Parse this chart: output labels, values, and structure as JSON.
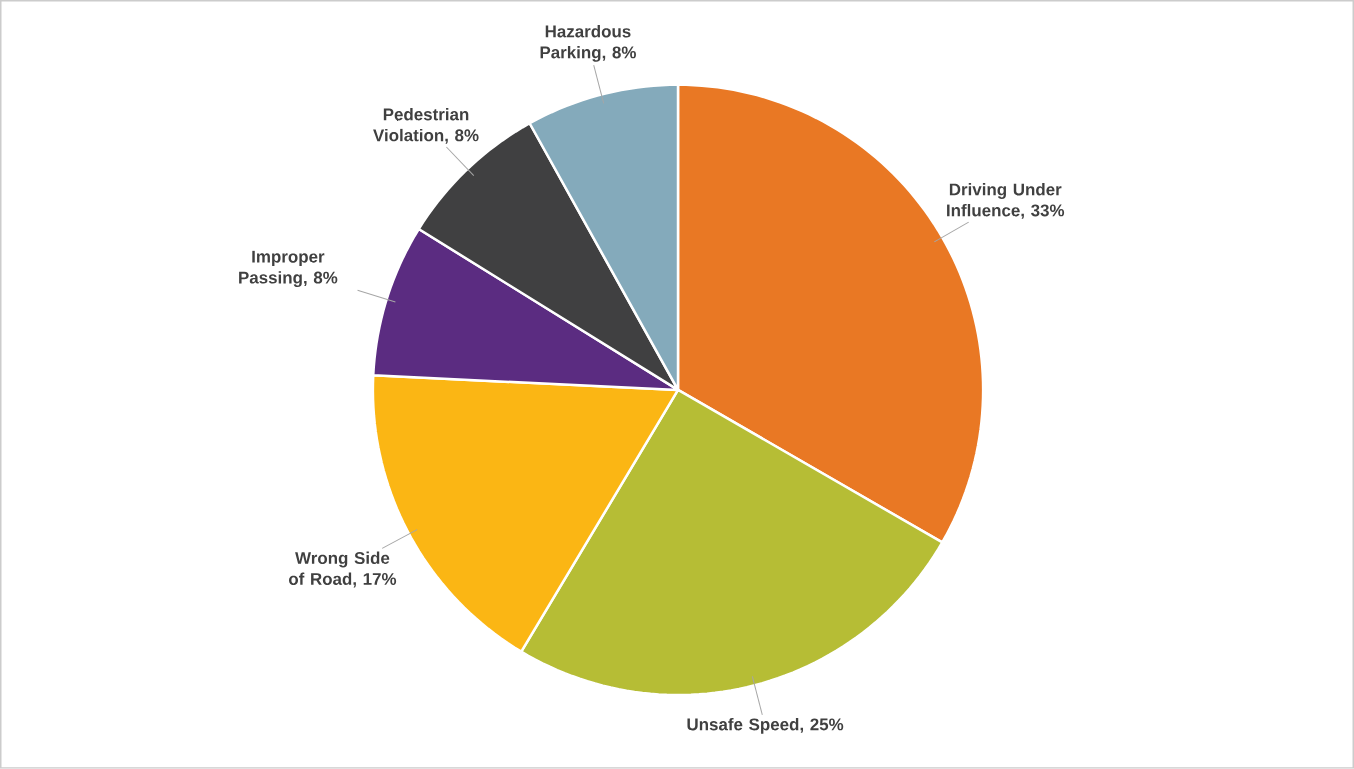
{
  "chart_data": {
    "type": "pie",
    "categories": [
      "Driving Under Influence",
      "Unsafe Speed",
      "Wrong Side of Road",
      "Improper Passing",
      "Pedestrian Violation",
      "Hazardous Parking"
    ],
    "values": [
      33,
      25,
      17,
      8,
      8,
      8
    ],
    "value_labels": [
      ", 33%",
      ", 25%",
      ", 17%",
      ", 8%",
      ", 8%",
      ", 8%"
    ],
    "colors": [
      "#e97824",
      "#b6bd35",
      "#fbb614",
      "#5b2c81",
      "#404041",
      "#84aabb"
    ]
  }
}
